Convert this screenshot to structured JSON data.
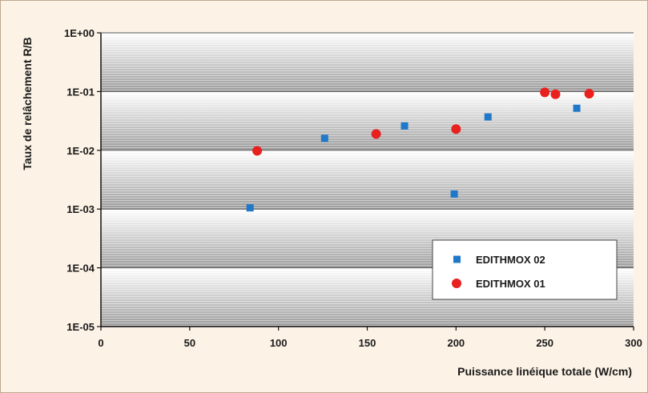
{
  "chart_data": {
    "type": "scatter",
    "title": "",
    "xlabel": "Puissance linéique totale (W/cm)",
    "ylabel": "Taux de relâchement R/B",
    "xlim": [
      0,
      300
    ],
    "ylim": [
      1e-05,
      1
    ],
    "yscale": "log",
    "grid": true,
    "legend_position": "bottom-right",
    "x_ticks": [
      0,
      50,
      100,
      150,
      200,
      250,
      300
    ],
    "x_tick_labels": [
      "0",
      "50",
      "100",
      "150",
      "200",
      "250",
      "300"
    ],
    "y_ticks": [
      1,
      0.1,
      0.01,
      0.001,
      0.0001,
      1e-05
    ],
    "y_tick_labels": [
      "1E+00",
      "1E-01",
      "1E-02",
      "1E-03",
      "1E-04",
      "1E-05"
    ],
    "series": [
      {
        "name": "EDITHMOX 02",
        "marker": "square",
        "color": "#1f78c8",
        "points": [
          {
            "x": 84,
            "y": 0.00105
          },
          {
            "x": 126,
            "y": 0.016
          },
          {
            "x": 171,
            "y": 0.026
          },
          {
            "x": 199,
            "y": 0.0018
          },
          {
            "x": 218,
            "y": 0.037
          },
          {
            "x": 268,
            "y": 0.052
          }
        ]
      },
      {
        "name": "EDITHMOX 01",
        "marker": "circle",
        "color": "#e8201e",
        "points": [
          {
            "x": 88,
            "y": 0.0098
          },
          {
            "x": 155,
            "y": 0.019
          },
          {
            "x": 200,
            "y": 0.023
          },
          {
            "x": 250,
            "y": 0.097
          },
          {
            "x": 256,
            "y": 0.09
          },
          {
            "x": 275,
            "y": 0.092
          }
        ]
      }
    ]
  }
}
